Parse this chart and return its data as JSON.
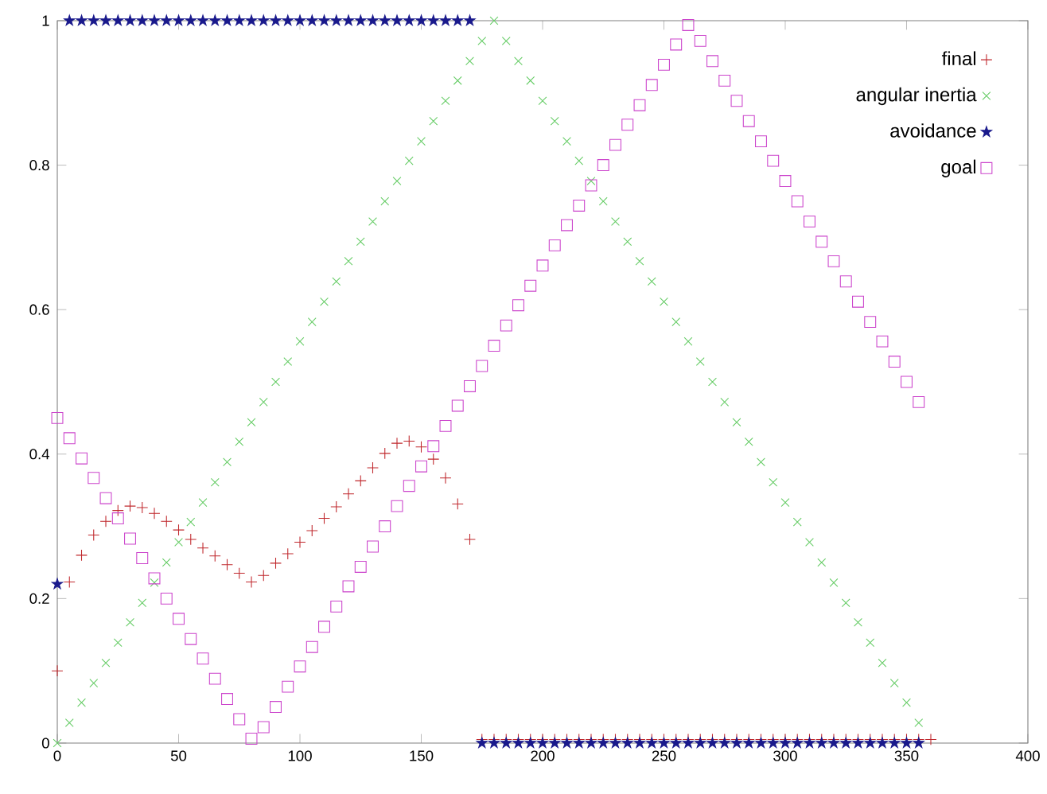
{
  "chart_data": {
    "type": "scatter",
    "x": [
      0,
      5,
      10,
      15,
      20,
      25,
      30,
      35,
      40,
      45,
      50,
      55,
      60,
      65,
      70,
      75,
      80,
      85,
      90,
      95,
      100,
      105,
      110,
      115,
      120,
      125,
      130,
      135,
      140,
      145,
      150,
      155,
      160,
      165,
      170,
      175,
      180,
      185,
      190,
      195,
      200,
      205,
      210,
      215,
      220,
      225,
      230,
      235,
      240,
      245,
      250,
      255,
      260,
      265,
      270,
      275,
      280,
      285,
      290,
      295,
      300,
      305,
      310,
      315,
      320,
      325,
      330,
      335,
      340,
      345,
      350,
      355
    ],
    "series": [
      {
        "name": "final",
        "color": "#c0282d",
        "marker": "plus",
        "x": [
          0,
          5,
          10,
          15,
          20,
          25,
          30,
          35,
          40,
          45,
          50,
          55,
          60,
          65,
          70,
          75,
          80,
          85,
          90,
          95,
          100,
          105,
          110,
          115,
          120,
          125,
          130,
          135,
          140,
          145,
          150,
          155,
          160,
          165,
          170,
          175,
          180,
          185,
          190,
          195,
          200,
          205,
          210,
          215,
          220,
          225,
          230,
          235,
          240,
          245,
          250,
          255,
          260,
          265,
          270,
          275,
          280,
          285,
          290,
          295,
          300,
          305,
          310,
          315,
          320,
          325,
          330,
          335,
          340,
          345,
          350,
          355,
          360
        ],
        "values": [
          0.1,
          0.223,
          0.26,
          0.288,
          0.307,
          0.322,
          0.328,
          0.326,
          0.318,
          0.307,
          0.295,
          0.282,
          0.27,
          0.259,
          0.247,
          0.235,
          0.223,
          0.232,
          0.249,
          0.262,
          0.278,
          0.294,
          0.311,
          0.327,
          0.345,
          0.363,
          0.381,
          0.401,
          0.415,
          0.418,
          0.41,
          0.393,
          0.367,
          0.331,
          0.282,
          0.005,
          0.005,
          0.005,
          0.005,
          0.005,
          0.005,
          0.005,
          0.005,
          0.005,
          0.005,
          0.005,
          0.005,
          0.005,
          0.005,
          0.005,
          0.005,
          0.005,
          0.005,
          0.005,
          0.005,
          0.005,
          0.005,
          0.005,
          0.005,
          0.005,
          0.005,
          0.005,
          0.005,
          0.005,
          0.005,
          0.005,
          0.005,
          0.005,
          0.005,
          0.005,
          0.005,
          0.005,
          0.005
        ]
      },
      {
        "name": "angular inertia",
        "color": "#66cc66",
        "marker": "cross",
        "values": [
          0,
          0.028,
          0.056,
          0.083,
          0.111,
          0.139,
          0.167,
          0.194,
          0.222,
          0.25,
          0.278,
          0.306,
          0.333,
          0.361,
          0.389,
          0.417,
          0.444,
          0.472,
          0.5,
          0.528,
          0.556,
          0.583,
          0.611,
          0.639,
          0.667,
          0.694,
          0.722,
          0.75,
          0.778,
          0.806,
          0.833,
          0.861,
          0.889,
          0.917,
          0.944,
          0.972,
          1,
          0.972,
          0.944,
          0.917,
          0.889,
          0.861,
          0.833,
          0.806,
          0.778,
          0.75,
          0.722,
          0.694,
          0.667,
          0.639,
          0.611,
          0.583,
          0.556,
          0.528,
          0.5,
          0.472,
          0.444,
          0.417,
          0.389,
          0.361,
          0.333,
          0.306,
          0.278,
          0.25,
          0.222,
          0.194,
          0.167,
          0.139,
          0.111,
          0.083,
          0.056,
          0.028
        ]
      },
      {
        "name": "avoidance",
        "color": "#1a1a8c",
        "marker": "star",
        "values": [
          0.22,
          1,
          1,
          1,
          1,
          1,
          1,
          1,
          1,
          1,
          1,
          1,
          1,
          1,
          1,
          1,
          1,
          1,
          1,
          1,
          1,
          1,
          1,
          1,
          1,
          1,
          1,
          1,
          1,
          1,
          1,
          1,
          1,
          1,
          1,
          0,
          0,
          0,
          0,
          0,
          0,
          0,
          0,
          0,
          0,
          0,
          0,
          0,
          0,
          0,
          0,
          0,
          0,
          0,
          0,
          0,
          0,
          0,
          0,
          0,
          0,
          0,
          0,
          0,
          0,
          0,
          0,
          0,
          0,
          0,
          0,
          0
        ]
      },
      {
        "name": "goal",
        "color": "#cc44cc",
        "marker": "square",
        "values": [
          0.45,
          0.422,
          0.394,
          0.367,
          0.339,
          0.311,
          0.283,
          0.256,
          0.228,
          0.2,
          0.172,
          0.144,
          0.117,
          0.089,
          0.061,
          0.033,
          0.006,
          0.022,
          0.05,
          0.078,
          0.106,
          0.133,
          0.161,
          0.189,
          0.217,
          0.244,
          0.272,
          0.3,
          0.328,
          0.356,
          0.383,
          0.411,
          0.439,
          0.467,
          0.494,
          0.522,
          0.55,
          0.578,
          0.606,
          0.633,
          0.661,
          0.689,
          0.717,
          0.744,
          0.772,
          0.8,
          0.828,
          0.856,
          0.883,
          0.911,
          0.939,
          0.967,
          0.994,
          0.972,
          0.944,
          0.917,
          0.889,
          0.861,
          0.833,
          0.806,
          0.778,
          0.75,
          0.722,
          0.694,
          0.667,
          0.639,
          0.611,
          0.583,
          0.556,
          0.528,
          0.5,
          0.472
        ]
      }
    ],
    "xlim": [
      0,
      400
    ],
    "xticks": [
      0,
      50,
      100,
      150,
      200,
      250,
      300,
      350,
      400
    ],
    "ylim": [
      0,
      1
    ],
    "yticks": [
      0,
      0.2,
      0.4,
      0.6,
      0.8,
      1
    ],
    "grid": false,
    "legend": "top right"
  }
}
